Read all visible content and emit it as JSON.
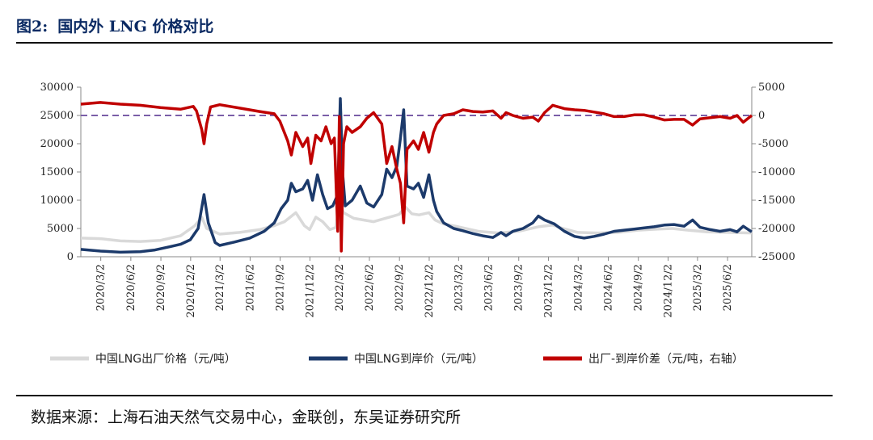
{
  "header": {
    "figure_label": "图2:",
    "title": "国内外 LNG 价格对比"
  },
  "footer": {
    "source": "数据来源：上海石油天然气交易中心，金联创，东吴证券研究所"
  },
  "colors": {
    "domestic": "#d9d9d9",
    "landed": "#1c3a6b",
    "spread": "#c00000",
    "zero_line": "#7a5ea8",
    "title": "#0b2a63"
  },
  "chart_data": {
    "type": "line",
    "title": "",
    "xlabel": "",
    "ylabel": "",
    "y_left_lim": [
      0,
      30000
    ],
    "y_left_ticks": [
      0,
      5000,
      10000,
      15000,
      20000,
      25000,
      30000
    ],
    "y_right_lim": [
      -25000,
      5000
    ],
    "y_right_ticks": [
      -25000,
      -20000,
      -15000,
      -10000,
      -5000,
      0,
      5000
    ],
    "x_range": [
      "2020/1/1",
      "2025/8/15"
    ],
    "x_ticks": [
      "2020/3/2",
      "2020/6/2",
      "2020/9/2",
      "2020/12/2",
      "2021/3/2",
      "2021/6/2",
      "2021/9/2",
      "2021/12/2",
      "2022/3/2",
      "2022/6/2",
      "2022/9/2",
      "2022/12/2",
      "2023/3/2",
      "2023/6/2",
      "2023/9/2",
      "2023/12/2",
      "2024/3/2",
      "2024/6/2",
      "2024/9/2",
      "2024/12/2",
      "2025/3/2",
      "2025/6/2"
    ],
    "reference_line": {
      "axis": "right",
      "value": 0,
      "style": "dashed"
    },
    "legend_position": "bottom",
    "series": [
      {
        "name": "中国LNG出厂价格（元/吨）",
        "axis": "left",
        "points": [
          [
            "2020/1/1",
            3300
          ],
          [
            "2020/3/1",
            3200
          ],
          [
            "2020/5/1",
            2800
          ],
          [
            "2020/7/1",
            2700
          ],
          [
            "2020/9/1",
            2900
          ],
          [
            "2020/11/1",
            3700
          ],
          [
            "2020/12/15",
            5500
          ],
          [
            "2021/1/5",
            7000
          ],
          [
            "2021/1/20",
            5000
          ],
          [
            "2021/2/10",
            4500
          ],
          [
            "2021/3/1",
            4000
          ],
          [
            "2021/5/1",
            4300
          ],
          [
            "2021/7/1",
            4800
          ],
          [
            "2021/8/15",
            5500
          ],
          [
            "2021/9/15",
            6200
          ],
          [
            "2021/10/20",
            7800
          ],
          [
            "2021/11/15",
            5500
          ],
          [
            "2021/12/1",
            4800
          ],
          [
            "2021/12/20",
            7000
          ],
          [
            "2022/1/10",
            6200
          ],
          [
            "2022/2/1",
            4800
          ],
          [
            "2022/2/20",
            5200
          ],
          [
            "2022/3/1",
            9800
          ],
          [
            "2022/3/15",
            7800
          ],
          [
            "2022/4/15",
            6800
          ],
          [
            "2022/5/15",
            6500
          ],
          [
            "2022/6/15",
            6200
          ],
          [
            "2022/7/15",
            6700
          ],
          [
            "2022/8/15",
            7200
          ],
          [
            "2022/9/1",
            7500
          ],
          [
            "2022/9/20",
            8800
          ],
          [
            "2022/10/10",
            7600
          ],
          [
            "2022/11/1",
            7400
          ],
          [
            "2022/12/1",
            7800
          ],
          [
            "2022/12/20",
            6500
          ],
          [
            "2023/1/15",
            5800
          ],
          [
            "2023/3/1",
            5300
          ],
          [
            "2023/5/1",
            4500
          ],
          [
            "2023/7/1",
            4200
          ],
          [
            "2023/9/1",
            4500
          ],
          [
            "2023/11/1",
            5300
          ],
          [
            "2023/12/15",
            5600
          ],
          [
            "2024/1/15",
            5000
          ],
          [
            "2024/3/1",
            4300
          ],
          [
            "2024/5/1",
            4200
          ],
          [
            "2024/7/1",
            4300
          ],
          [
            "2024/9/1",
            4700
          ],
          [
            "2024/11/1",
            4900
          ],
          [
            "2024/12/15",
            5000
          ],
          [
            "2025/2/1",
            4700
          ],
          [
            "2025/4/1",
            4400
          ],
          [
            "2025/6/1",
            4300
          ],
          [
            "2025/8/15",
            4200
          ]
        ]
      },
      {
        "name": "中国LNG到岸价（元/吨）",
        "axis": "left",
        "points": [
          [
            "2020/1/1",
            1300
          ],
          [
            "2020/3/1",
            1000
          ],
          [
            "2020/5/1",
            800
          ],
          [
            "2020/7/1",
            900
          ],
          [
            "2020/8/15",
            1200
          ],
          [
            "2020/10/1",
            1800
          ],
          [
            "2020/11/1",
            2200
          ],
          [
            "2020/12/1",
            3000
          ],
          [
            "2020/12/25",
            5000
          ],
          [
            "2021/1/12",
            11000
          ],
          [
            "2021/1/25",
            6000
          ],
          [
            "2021/2/15",
            2500
          ],
          [
            "2021/3/1",
            2000
          ],
          [
            "2021/4/15",
            2600
          ],
          [
            "2021/6/1",
            3300
          ],
          [
            "2021/7/15",
            4500
          ],
          [
            "2021/8/15",
            6000
          ],
          [
            "2021/9/5",
            8500
          ],
          [
            "2021/9/25",
            10000
          ],
          [
            "2021/10/6",
            13000
          ],
          [
            "2021/10/20",
            11500
          ],
          [
            "2021/11/10",
            12000
          ],
          [
            "2021/11/25",
            13500
          ],
          [
            "2021/12/10",
            10000
          ],
          [
            "2021/12/25",
            14500
          ],
          [
            "2022/1/10",
            11000
          ],
          [
            "2022/1/25",
            8500
          ],
          [
            "2022/2/10",
            9000
          ],
          [
            "2022/2/25",
            11000
          ],
          [
            "2022/3/5",
            28000
          ],
          [
            "2022/3/12",
            15000
          ],
          [
            "2022/3/20",
            9000
          ],
          [
            "2022/4/10",
            10000
          ],
          [
            "2022/5/5",
            12500
          ],
          [
            "2022/5/25",
            9500
          ],
          [
            "2022/6/15",
            8800
          ],
          [
            "2022/7/10",
            11000
          ],
          [
            "2022/7/25",
            15500
          ],
          [
            "2022/8/10",
            14000
          ],
          [
            "2022/8/25",
            16000
          ],
          [
            "2022/9/5",
            21000
          ],
          [
            "2022/9/15",
            26000
          ],
          [
            "2022/9/25",
            12500
          ],
          [
            "2022/10/15",
            12000
          ],
          [
            "2022/10/30",
            13000
          ],
          [
            "2022/11/15",
            10500
          ],
          [
            "2022/12/1",
            14500
          ],
          [
            "2022/12/15",
            10000
          ],
          [
            "2022/12/25",
            8000
          ],
          [
            "2023/1/15",
            6000
          ],
          [
            "2023/2/15",
            5000
          ],
          [
            "2023/3/15",
            4600
          ],
          [
            "2023/4/15",
            4100
          ],
          [
            "2023/5/15",
            3700
          ],
          [
            "2023/6/15",
            3400
          ],
          [
            "2023/7/10",
            4300
          ],
          [
            "2023/7/25",
            3700
          ],
          [
            "2023/8/15",
            4500
          ],
          [
            "2023/9/15",
            5000
          ],
          [
            "2023/10/15",
            6000
          ],
          [
            "2023/11/1",
            7200
          ],
          [
            "2023/11/20",
            6500
          ],
          [
            "2023/12/20",
            5800
          ],
          [
            "2024/1/20",
            4500
          ],
          [
            "2024/2/20",
            3600
          ],
          [
            "2024/3/20",
            3300
          ],
          [
            "2024/4/20",
            3600
          ],
          [
            "2024/5/20",
            4000
          ],
          [
            "2024/6/20",
            4500
          ],
          [
            "2024/7/20",
            4700
          ],
          [
            "2024/8/20",
            4900
          ],
          [
            "2024/9/20",
            5100
          ],
          [
            "2024/10/20",
            5300
          ],
          [
            "2024/11/20",
            5600
          ],
          [
            "2024/12/20",
            5700
          ],
          [
            "2025/1/20",
            5400
          ],
          [
            "2025/2/15",
            6500
          ],
          [
            "2025/3/10",
            5200
          ],
          [
            "2025/4/10",
            4800
          ],
          [
            "2025/5/10",
            4500
          ],
          [
            "2025/6/10",
            4800
          ],
          [
            "2025/7/1",
            4400
          ],
          [
            "2025/7/20",
            5400
          ],
          [
            "2025/8/15",
            4400
          ]
        ]
      },
      {
        "name": "出厂-到岸价差（元/吨，右轴）",
        "axis": "right",
        "points": [
          [
            "2020/1/1",
            2000
          ],
          [
            "2020/3/1",
            2300
          ],
          [
            "2020/5/1",
            2000
          ],
          [
            "2020/7/1",
            1800
          ],
          [
            "2020/9/1",
            1400
          ],
          [
            "2020/11/1",
            1100
          ],
          [
            "2020/12/10",
            1600
          ],
          [
            "2020/12/20",
            800
          ],
          [
            "2021/1/5",
            -2500
          ],
          [
            "2021/1/12",
            -5000
          ],
          [
            "2021/1/20",
            -1500
          ],
          [
            "2021/2/1",
            1500
          ],
          [
            "2021/3/1",
            1900
          ],
          [
            "2021/5/1",
            1300
          ],
          [
            "2021/7/1",
            700
          ],
          [
            "2021/8/15",
            300
          ],
          [
            "2021/9/1",
            -1000
          ],
          [
            "2021/9/25",
            -4500
          ],
          [
            "2021/10/6",
            -7000
          ],
          [
            "2021/10/20",
            -3000
          ],
          [
            "2021/11/10",
            -5500
          ],
          [
            "2021/11/25",
            -4000
          ],
          [
            "2021/12/5",
            -8500
          ],
          [
            "2021/12/20",
            -3500
          ],
          [
            "2022/1/5",
            -4500
          ],
          [
            "2022/1/20",
            -2000
          ],
          [
            "2022/2/5",
            -5000
          ],
          [
            "2022/2/15",
            -4000
          ],
          [
            "2022/2/25",
            -20500
          ],
          [
            "2022/3/2",
            -200
          ],
          [
            "2022/3/8",
            -24000
          ],
          [
            "2022/3/15",
            -5000
          ],
          [
            "2022/3/25",
            -2000
          ],
          [
            "2022/4/10",
            -3000
          ],
          [
            "2022/5/5",
            -2000
          ],
          [
            "2022/5/25",
            -500
          ],
          [
            "2022/6/15",
            500
          ],
          [
            "2022/7/10",
            -1500
          ],
          [
            "2022/7/25",
            -8500
          ],
          [
            "2022/8/10",
            -5500
          ],
          [
            "2022/8/25",
            -9500
          ],
          [
            "2022/9/5",
            -12000
          ],
          [
            "2022/9/15",
            -19000
          ],
          [
            "2022/9/25",
            -6000
          ],
          [
            "2022/10/15",
            -4500
          ],
          [
            "2022/10/30",
            -6000
          ],
          [
            "2022/11/15",
            -3000
          ],
          [
            "2022/12/1",
            -6500
          ],
          [
            "2022/12/15",
            -3000
          ],
          [
            "2022/12/25",
            -1500
          ],
          [
            "2023/1/15",
            0
          ],
          [
            "2023/2/15",
            300
          ],
          [
            "2023/3/15",
            1000
          ],
          [
            "2023/4/15",
            700
          ],
          [
            "2023/5/15",
            600
          ],
          [
            "2023/6/15",
            800
          ],
          [
            "2023/7/10",
            -500
          ],
          [
            "2023/7/25",
            500
          ],
          [
            "2023/8/15",
            0
          ],
          [
            "2023/9/15",
            -500
          ],
          [
            "2023/10/15",
            -300
          ],
          [
            "2023/11/1",
            -1000
          ],
          [
            "2023/11/20",
            500
          ],
          [
            "2023/12/15",
            1800
          ],
          [
            "2024/1/20",
            1200
          ],
          [
            "2024/2/20",
            1000
          ],
          [
            "2024/3/20",
            900
          ],
          [
            "2024/4/20",
            600
          ],
          [
            "2024/5/20",
            300
          ],
          [
            "2024/6/20",
            -200
          ],
          [
            "2024/7/20",
            -200
          ],
          [
            "2024/8/20",
            100
          ],
          [
            "2024/9/20",
            100
          ],
          [
            "2024/10/20",
            -300
          ],
          [
            "2024/11/20",
            -800
          ],
          [
            "2024/12/20",
            -700
          ],
          [
            "2025/1/20",
            -700
          ],
          [
            "2025/2/15",
            -1700
          ],
          [
            "2025/3/10",
            -600
          ],
          [
            "2025/4/10",
            -400
          ],
          [
            "2025/5/10",
            -200
          ],
          [
            "2025/6/10",
            -500
          ],
          [
            "2025/7/1",
            0
          ],
          [
            "2025/7/20",
            -1200
          ],
          [
            "2025/8/15",
            0
          ]
        ]
      }
    ]
  }
}
